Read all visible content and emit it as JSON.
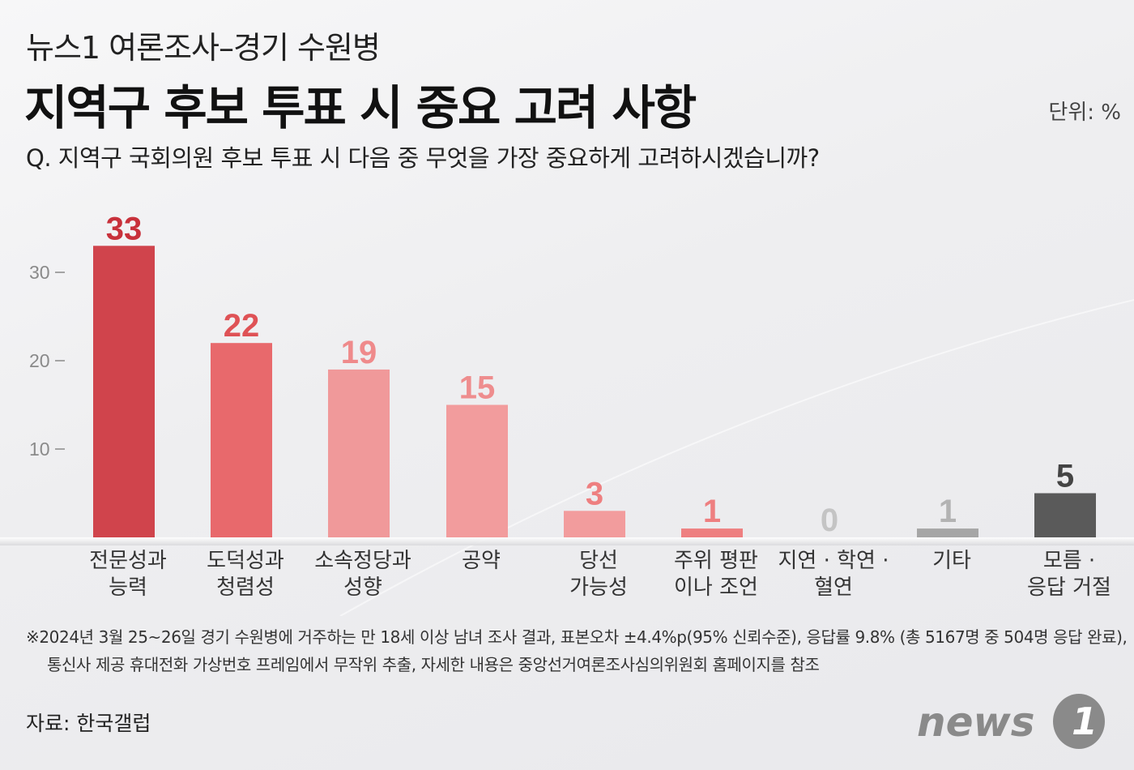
{
  "header": {
    "subtitle": "뉴스1 여론조사–경기 수원병",
    "title": "지역구 후보 투표 시 중요 고려 사항",
    "unit": "단위: %",
    "question": "Q. 지역구 국회의원 후보 투표 시 다음 중 무엇을 가장 중요하게 고려하시겠습니까?"
  },
  "chart_data": {
    "type": "bar",
    "categories": [
      [
        "전문성과",
        "능력"
      ],
      [
        "도덕성과",
        "청렴성"
      ],
      [
        "소속정당과",
        "성향"
      ],
      [
        "공약"
      ],
      [
        "당선",
        "가능성"
      ],
      [
        "주위 평판",
        "이나 조언"
      ],
      [
        "지연 · 학연 ·",
        "혈연"
      ],
      [
        "기타"
      ],
      [
        "모름 ·",
        "응답 거절"
      ]
    ],
    "values": [
      33,
      22,
      19,
      15,
      3,
      1,
      0,
      1,
      5
    ],
    "value_labels": [
      "33",
      "22",
      "19",
      "15",
      "3",
      "1",
      "0",
      "1",
      "5"
    ],
    "bar_colors": [
      "#d0444c",
      "#e8696c",
      "#f0999a",
      "#f29c9d",
      "#f29c9d",
      "#ee7f80",
      "#cfcfcf",
      "#a6a6a6",
      "#5a5a5a"
    ],
    "label_colors": [
      "#c8313b",
      "#df5256",
      "#ef8a8b",
      "#ee8d8e",
      "#ee7f80",
      "#ee7f80",
      "#c4c4c4",
      "#b3b3b3",
      "#444444"
    ],
    "yticks": [
      10,
      20,
      30
    ],
    "ylim": [
      0,
      35
    ],
    "grid": false,
    "legend": "none"
  },
  "footer": {
    "note_line1": "※2024년 3월 25~26일 경기 수원병에 거주하는 만 18세 이상 남녀 조사 결과, 표본오차 ±4.4%p(95% 신뢰수준), 응답률 9.8% (총 5167명 중 504명 응답 완료),",
    "note_line2": "통신사 제공 휴대전화 가상번호 프레임에서 무작위 추출, 자세한 내용은 중앙선거여론조사심의위원회 홈페이지를 참조",
    "source": "자료: 한국갤럽",
    "logo_text": "news",
    "logo_mark": "1"
  }
}
